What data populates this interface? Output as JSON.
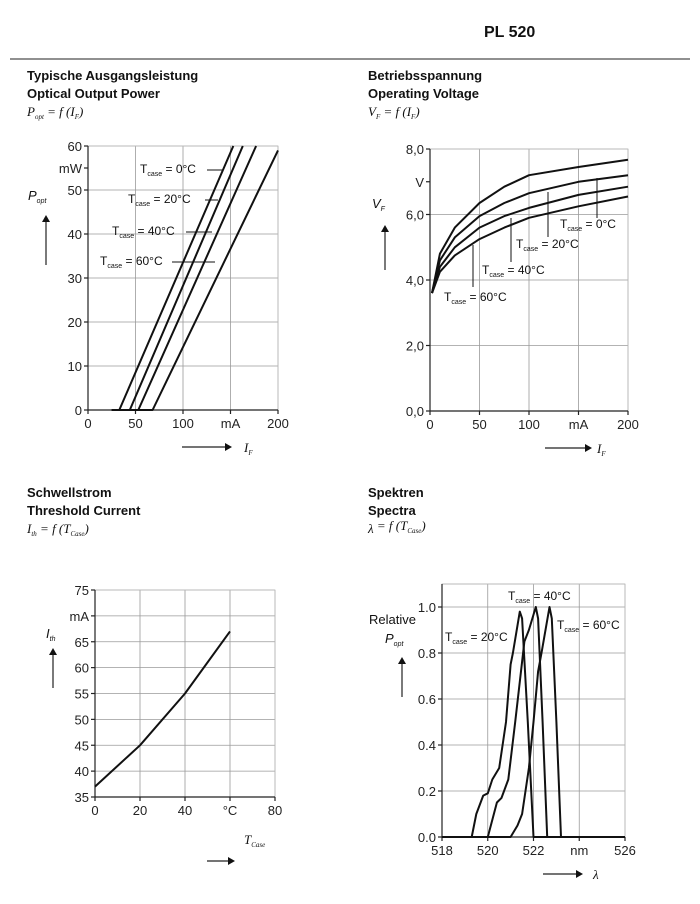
{
  "header": {
    "title": "PL 520"
  },
  "chart_data": [
    {
      "type": "line",
      "title_de": "Typische Ausgangsleistung",
      "title": "Optical Output Power",
      "formula": {
        "y": "P",
        "y_sub": "opt",
        "mid": " = f (",
        "x": "I",
        "x_sub": "F",
        "end": ")"
      },
      "xlabel": {
        "sym": "I",
        "sub": "F"
      },
      "ylabel": {
        "sym": "P",
        "sub": "opt"
      },
      "xlim": [
        0,
        200
      ],
      "ylim": [
        0,
        60
      ],
      "x_ticks": [
        {
          "v": 0,
          "t": "0"
        },
        {
          "v": 50,
          "t": "50"
        },
        {
          "v": 100,
          "t": "100"
        },
        {
          "v": 150,
          "t": "mA"
        },
        {
          "v": 200,
          "t": "200"
        }
      ],
      "y_ticks": [
        {
          "v": 0,
          "t": "0"
        },
        {
          "v": 10,
          "t": "10"
        },
        {
          "v": 20,
          "t": "20"
        },
        {
          "v": 30,
          "t": "30"
        },
        {
          "v": 40,
          "t": "40"
        },
        {
          "v": 50,
          "t": "50"
        },
        {
          "v": 55,
          "t": "mW"
        },
        {
          "v": 60,
          "t": "60"
        }
      ],
      "grid": true,
      "series": [
        {
          "name": "Tcase = 0°C",
          "label": {
            "T": "T",
            "sub": "case",
            "rest": " = 0°C"
          },
          "x": [
            25,
            33,
            153
          ],
          "y": [
            0,
            0,
            60
          ]
        },
        {
          "name": "Tcase = 20°C",
          "label": {
            "T": "T",
            "sub": "case",
            "rest": " = 20°C"
          },
          "x": [
            25,
            44,
            163
          ],
          "y": [
            0,
            0,
            60
          ]
        },
        {
          "name": "Tcase = 40°C",
          "label": {
            "T": "T",
            "sub": "case",
            "rest": " = 40°C"
          },
          "x": [
            25,
            53,
            177
          ],
          "y": [
            0,
            0,
            60
          ]
        },
        {
          "name": "Tcase = 60°C",
          "label": {
            "T": "T",
            "sub": "case",
            "rest": " = 60°C"
          },
          "x": [
            25,
            68,
            200
          ],
          "y": [
            0,
            0,
            59
          ]
        }
      ]
    },
    {
      "type": "line",
      "title_de": "Betriebsspannung",
      "title": "Operating Voltage",
      "formula": {
        "y": "V",
        "y_sub": "F",
        "mid": " = f (",
        "x": "I",
        "x_sub": "F",
        "end": ")"
      },
      "xlabel": {
        "sym": "I",
        "sub": "F"
      },
      "ylabel": {
        "sym": "V",
        "sub": "F"
      },
      "xlim": [
        0,
        200
      ],
      "ylim": [
        0,
        8
      ],
      "x_ticks": [
        {
          "v": 0,
          "t": "0"
        },
        {
          "v": 50,
          "t": "50"
        },
        {
          "v": 100,
          "t": "100"
        },
        {
          "v": 150,
          "t": "mA"
        },
        {
          "v": 200,
          "t": "200"
        }
      ],
      "y_ticks": [
        {
          "v": 0,
          "t": "0,0"
        },
        {
          "v": 2,
          "t": "2,0"
        },
        {
          "v": 4,
          "t": "4,0"
        },
        {
          "v": 6,
          "t": "6,0"
        },
        {
          "v": 7,
          "t": "V"
        },
        {
          "v": 8,
          "t": "8,0"
        }
      ],
      "grid": true,
      "series": [
        {
          "name": "Tcase = 0°C",
          "label": {
            "T": "T",
            "sub": "case",
            "rest": " = 0°C"
          },
          "x": [
            2,
            10,
            25,
            50,
            75,
            100,
            150,
            200
          ],
          "y": [
            3.6,
            4.8,
            5.6,
            6.35,
            6.85,
            7.2,
            7.45,
            7.67
          ]
        },
        {
          "name": "Tcase = 20°C",
          "label": {
            "T": "T",
            "sub": "case",
            "rest": " = 20°C"
          },
          "x": [
            2,
            10,
            25,
            50,
            75,
            100,
            150,
            200
          ],
          "y": [
            3.6,
            4.6,
            5.3,
            5.95,
            6.35,
            6.65,
            7.0,
            7.2
          ]
        },
        {
          "name": "Tcase = 40°C",
          "label": {
            "T": "T",
            "sub": "case",
            "rest": " = 40°C"
          },
          "x": [
            2,
            10,
            25,
            50,
            75,
            100,
            150,
            200
          ],
          "y": [
            3.6,
            4.4,
            5.0,
            5.6,
            5.95,
            6.2,
            6.6,
            6.85
          ]
        },
        {
          "name": "Tcase = 60°C",
          "label": {
            "T": "T",
            "sub": "case",
            "rest": " = 60°C"
          },
          "x": [
            2,
            10,
            25,
            50,
            75,
            100,
            150,
            200
          ],
          "y": [
            3.6,
            4.25,
            4.75,
            5.25,
            5.6,
            5.9,
            6.25,
            6.55
          ]
        }
      ]
    },
    {
      "type": "line",
      "title_de": "Schwellstrom",
      "title": "Threshold Current",
      "formula": {
        "y": "I",
        "y_sub": "th",
        "mid": " = f (",
        "x": "T",
        "x_sub": "Case",
        "end": ")"
      },
      "xlabel": {
        "sym": "T",
        "sub": "Case"
      },
      "ylabel": {
        "sym": "I",
        "sub": "th"
      },
      "xlim": [
        0,
        80
      ],
      "ylim": [
        35,
        75
      ],
      "x_ticks": [
        {
          "v": 0,
          "t": "0"
        },
        {
          "v": 20,
          "t": "20"
        },
        {
          "v": 40,
          "t": "40"
        },
        {
          "v": 60,
          "t": "°C"
        },
        {
          "v": 80,
          "t": "80"
        }
      ],
      "y_ticks": [
        {
          "v": 35,
          "t": "35"
        },
        {
          "v": 40,
          "t": "40"
        },
        {
          "v": 45,
          "t": "45"
        },
        {
          "v": 50,
          "t": "50"
        },
        {
          "v": 55,
          "t": "55"
        },
        {
          "v": 60,
          "t": "60"
        },
        {
          "v": 65,
          "t": "65"
        },
        {
          "v": 70,
          "t": "mA"
        },
        {
          "v": 75,
          "t": "75"
        }
      ],
      "grid": true,
      "series": [
        {
          "name": "Ith",
          "x": [
            0,
            20,
            40,
            60
          ],
          "y": [
            37,
            45,
            55,
            67
          ]
        }
      ]
    },
    {
      "type": "line",
      "title_de": "Spektren",
      "title": "Spectra",
      "formula": {
        "y": "λ",
        "y_sub": "",
        "mid": " = f (",
        "x": "T",
        "x_sub": "Case",
        "end": ")"
      },
      "xlabel": {
        "sym": "λ",
        "sub": ""
      },
      "ylabel": {
        "pre": "Relative",
        "sym": "P",
        "sub": "opt"
      },
      "xlim": [
        518,
        526
      ],
      "ylim": [
        0,
        1.1
      ],
      "x_ticks": [
        {
          "v": 518,
          "t": "518"
        },
        {
          "v": 520,
          "t": "520"
        },
        {
          "v": 522,
          "t": "522"
        },
        {
          "v": 524,
          "t": "nm"
        },
        {
          "v": 526,
          "t": "526"
        }
      ],
      "y_ticks": [
        {
          "v": 0,
          "t": "0.0"
        },
        {
          "v": 0.2,
          "t": "0.2"
        },
        {
          "v": 0.4,
          "t": "0.4"
        },
        {
          "v": 0.6,
          "t": "0.6"
        },
        {
          "v": 0.8,
          "t": "0.8"
        },
        {
          "v": 1.0,
          "t": "1.0"
        }
      ],
      "grid": true,
      "series": [
        {
          "name": "Tcase = 20°C",
          "label": {
            "T": "T",
            "sub": "case",
            "rest": " = 20°C"
          },
          "x": [
            518,
            519.3,
            519.5,
            519.8,
            520.0,
            520.2,
            520.5,
            520.8,
            521.0,
            521.1,
            521.4,
            521.5,
            521.75,
            522.0,
            526
          ],
          "y": [
            0,
            0,
            0.1,
            0.18,
            0.19,
            0.25,
            0.3,
            0.5,
            0.75,
            0.8,
            0.98,
            0.95,
            0.5,
            0,
            0
          ]
        },
        {
          "name": "Tcase = 40°C",
          "label": {
            "T": "T",
            "sub": "case",
            "rest": " = 40°C"
          },
          "x": [
            518,
            520.0,
            520.4,
            520.6,
            520.9,
            521.2,
            521.6,
            521.8,
            522.1,
            522.2,
            522.4,
            522.6,
            526
          ],
          "y": [
            0,
            0,
            0.15,
            0.17,
            0.25,
            0.5,
            0.85,
            0.9,
            1.0,
            0.95,
            0.5,
            0,
            0
          ]
        },
        {
          "name": "Tcase = 60°C",
          "label": {
            "T": "T",
            "sub": "case",
            "rest": " = 60°C"
          },
          "x": [
            518,
            521.0,
            521.3,
            521.5,
            521.8,
            522.0,
            522.2,
            522.35,
            522.7,
            522.8,
            523.0,
            523.2,
            526
          ],
          "y": [
            0,
            0,
            0.05,
            0.1,
            0.3,
            0.5,
            0.72,
            0.8,
            1.0,
            0.95,
            0.5,
            0,
            0
          ]
        }
      ]
    }
  ]
}
